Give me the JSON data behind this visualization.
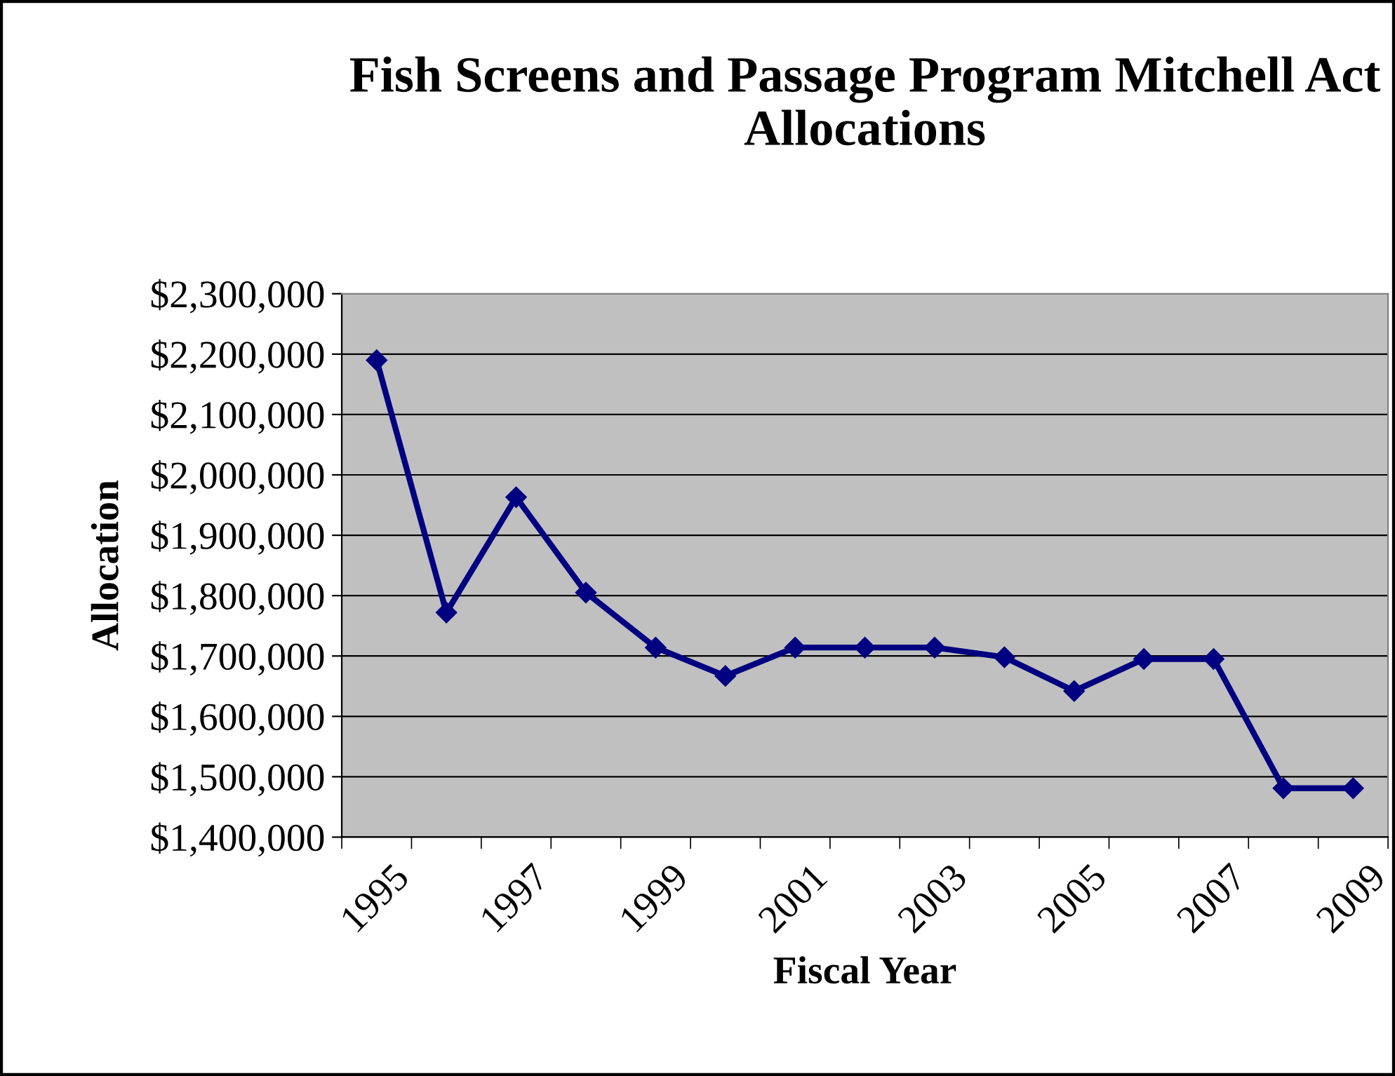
{
  "chart_data": {
    "type": "line",
    "title": "Fish Screens and Passage Program Mitchell Act Allocations",
    "xlabel": "Fiscal Year",
    "ylabel": "Allocation",
    "categories": [
      "1995",
      null,
      "1997",
      null,
      "1999",
      null,
      "2001",
      null,
      "2003",
      null,
      "2005",
      null,
      "2007",
      null,
      "2009"
    ],
    "series": [
      {
        "color": "#000080",
        "values": [
          2190000,
          1772000,
          1963000,
          1805000,
          1714000,
          1667000,
          1714000,
          1714000,
          1714000,
          1698000,
          1642000,
          1695000,
          1695000,
          1481000,
          1481000
        ]
      }
    ],
    "ylim": [
      1400000,
      2300000
    ],
    "yticks": [
      {
        "value": 1400000,
        "label": "$1,400,000"
      },
      {
        "value": 1500000,
        "label": "$1,500,000"
      },
      {
        "value": 1600000,
        "label": "$1,600,000"
      },
      {
        "value": 1700000,
        "label": "$1,700,000"
      },
      {
        "value": 1800000,
        "label": "$1,800,000"
      },
      {
        "value": 1900000,
        "label": "$1,900,000"
      },
      {
        "value": 2000000,
        "label": "$2,000,000"
      },
      {
        "value": 2100000,
        "label": "$2,100,000"
      },
      {
        "value": 2200000,
        "label": "$2,200,000"
      },
      {
        "value": 2300000,
        "label": "$2,300,000"
      }
    ],
    "grid": "y",
    "marker": "diamond",
    "line_style": "solid"
  }
}
